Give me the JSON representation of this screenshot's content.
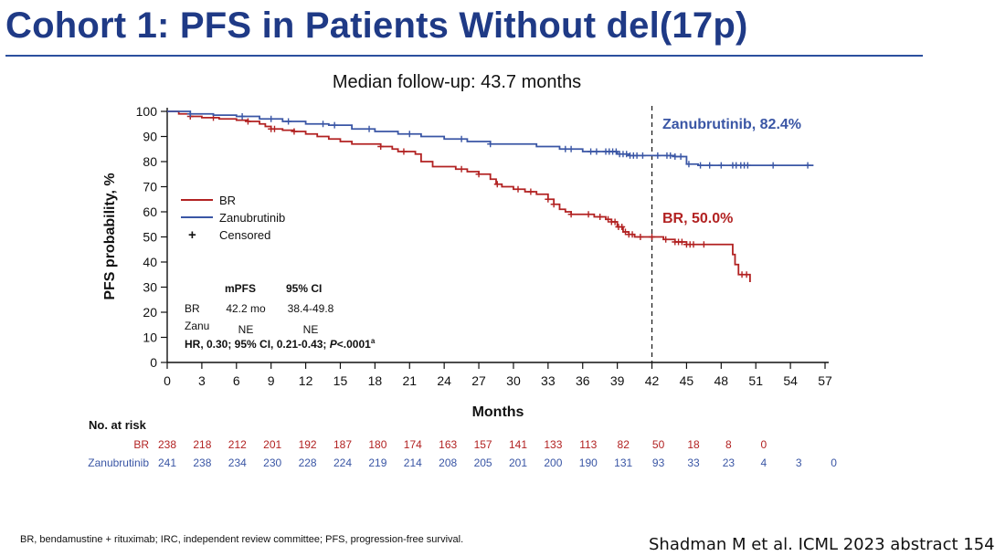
{
  "title": "Cohort 1: PFS in Patients Without del(17p)",
  "subtitle": "Median follow-up: 43.7 months",
  "footnote": "BR, bendamustine + rituximab; IRC, independent review committee; PFS, progression-free survival.",
  "citation": "Shadman M et al. ICML 2023 abstract 154",
  "colors": {
    "br": "#b22222",
    "zanu": "#3a56a5",
    "title": "#1f3a86",
    "axis": "#111111"
  },
  "chart_data": {
    "type": "line",
    "xlabel": "Months",
    "ylabel": "PFS probability, %",
    "xlim": [
      0,
      57
    ],
    "ylim": [
      0,
      100
    ],
    "xticks": [
      0,
      3,
      6,
      9,
      12,
      15,
      18,
      21,
      24,
      27,
      30,
      33,
      36,
      39,
      42,
      45,
      48,
      51,
      54,
      57
    ],
    "yticks": [
      0,
      10,
      20,
      30,
      40,
      50,
      60,
      70,
      80,
      90,
      100
    ],
    "reference_line_x": 42,
    "legend": [
      {
        "key": "br",
        "label": "BR",
        "symbol": "line"
      },
      {
        "key": "zanu",
        "label": "Zanubrutinib",
        "symbol": "line"
      },
      {
        "key": "censored",
        "label": "Censored",
        "symbol": "+"
      }
    ],
    "series": [
      {
        "key": "br",
        "name": "BR",
        "end_label": "BR, 50.0%",
        "x": [
          0,
          1,
          2,
          3,
          4.5,
          6,
          7,
          8,
          8.5,
          9,
          10,
          11,
          12,
          13,
          14,
          15,
          16,
          18.5,
          19.5,
          20,
          21.5,
          22,
          23,
          25,
          26,
          27,
          28,
          28.5,
          29,
          30,
          31,
          32,
          33,
          33.5,
          34,
          34.5,
          35,
          36,
          37,
          38,
          38.5,
          39,
          39.5,
          40,
          40.5,
          42,
          43,
          44,
          45,
          46,
          47,
          48.5,
          49,
          49.2,
          49.5,
          50.5
        ],
        "y": [
          100,
          99,
          98,
          97.5,
          97,
          96.5,
          96,
          95,
          94,
          93,
          92.5,
          92,
          91,
          90,
          89,
          88,
          87,
          86,
          85,
          84,
          83,
          80,
          78,
          77,
          76,
          75,
          73,
          71,
          70,
          69,
          68,
          67,
          65,
          63,
          61,
          60,
          59,
          59,
          58,
          57,
          56,
          54,
          52,
          51,
          50,
          50,
          49,
          48,
          47,
          47,
          47,
          47,
          43,
          39,
          35,
          32
        ],
        "censored_x": [
          2,
          4,
          7,
          9,
          9.3,
          11,
          18.5,
          20.5,
          25.5,
          27,
          28.6,
          30.4,
          31.5,
          33,
          33.5,
          35,
          36.5,
          37.5,
          38.2,
          38.5,
          38.8,
          39.1,
          39.4,
          39.7,
          40,
          40.3,
          41,
          42,
          43.2,
          44,
          44.3,
          44.6,
          45,
          45.3,
          45.6,
          46.5,
          49.8,
          50.2
        ]
      },
      {
        "key": "zanu",
        "name": "Zanubrutinib",
        "end_label": "Zanubrutinib, 82.4%",
        "x": [
          0,
          2,
          4,
          6,
          8,
          10,
          12,
          14,
          16,
          18,
          20,
          22,
          24,
          26,
          28,
          30,
          32,
          34,
          36,
          38,
          39,
          40,
          42,
          44,
          45,
          46,
          56
        ],
        "y": [
          100,
          99,
          98.5,
          98,
          97,
          96,
          95,
          94.5,
          93,
          92,
          91,
          90,
          89,
          88,
          87,
          87,
          86,
          85,
          84,
          84,
          83,
          82.4,
          82.4,
          82,
          79,
          78.5,
          78.5
        ],
        "censored_x": [
          2,
          6.5,
          9,
          10.5,
          13.5,
          14.5,
          17.5,
          21,
          25.5,
          28,
          34.5,
          35,
          36.7,
          37.2,
          38,
          38.3,
          38.6,
          38.9,
          39.2,
          39.5,
          39.8,
          40.1,
          40.4,
          40.7,
          41.2,
          42.5,
          43.3,
          43.6,
          44,
          44.5,
          45.2,
          46.2,
          47,
          48,
          49,
          49.3,
          49.7,
          50,
          50.3,
          52.5,
          55.5
        ]
      }
    ],
    "stats_table": {
      "headers": [
        "mPFS",
        "95% CI"
      ],
      "rows": [
        {
          "label": "BR",
          "mpfs": "42.2 mo",
          "ci": "38.4-49.8"
        },
        {
          "label": "Zanu",
          "mpfs": "NE",
          "ci": "NE"
        }
      ],
      "hr_line": "HR, 0.30; 95% CI, 0.21-0.43; ",
      "p_symbol": "P",
      "p_value": "<.0001",
      "p_superscript": "a"
    },
    "at_risk": {
      "title": "No. at risk",
      "rows": [
        {
          "key": "br",
          "label": "BR",
          "values": [
            "238",
            "218",
            "212",
            "201",
            "192",
            "187",
            "180",
            "174",
            "163",
            "157",
            "141",
            "133",
            "113",
            "82",
            "50",
            "18",
            "8",
            "0"
          ]
        },
        {
          "key": "zanu",
          "label": "Zanubrutinib",
          "values": [
            "241",
            "238",
            "234",
            "230",
            "228",
            "224",
            "219",
            "214",
            "208",
            "205",
            "201",
            "200",
            "190",
            "131",
            "93",
            "33",
            "23",
            "4",
            "3",
            "0"
          ]
        }
      ]
    }
  }
}
